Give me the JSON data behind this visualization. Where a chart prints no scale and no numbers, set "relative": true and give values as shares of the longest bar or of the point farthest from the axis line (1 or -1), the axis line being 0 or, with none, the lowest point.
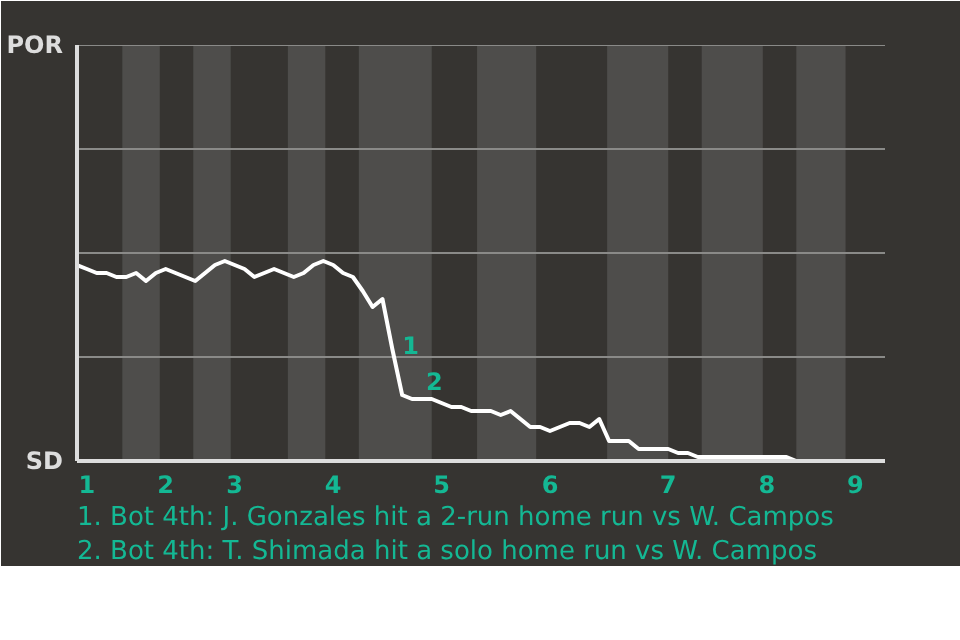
{
  "chart_data": {
    "type": "line",
    "relative": true,
    "categories": [
      null,
      "1",
      null,
      null,
      null,
      null,
      null,
      null,
      null,
      "2",
      null,
      null,
      null,
      null,
      null,
      null,
      "3",
      null,
      null,
      null,
      null,
      null,
      null,
      null,
      null,
      null,
      "4",
      null,
      null,
      null,
      null,
      null,
      null,
      null,
      null,
      null,
      null,
      "5",
      null,
      null,
      null,
      null,
      null,
      null,
      null,
      null,
      null,
      null,
      "6",
      null,
      null,
      null,
      null,
      null,
      null,
      null,
      null,
      null,
      null,
      null,
      "7",
      null,
      null,
      null,
      null,
      null,
      null,
      null,
      null,
      null,
      "8",
      null,
      null,
      null,
      null,
      null,
      null,
      null,
      null,
      "9",
      null,
      null
    ],
    "series": [
      {
        "color": "#ffffff",
        "values": [
          0.98,
          0.96,
          0.94,
          0.94,
          0.92,
          0.92,
          0.94,
          0.9,
          0.94,
          0.96,
          0.94,
          0.92,
          0.9,
          0.94,
          0.98,
          1,
          0.98,
          0.96,
          0.92,
          0.94,
          0.96,
          0.94,
          0.92,
          0.94,
          0.98,
          1,
          0.98,
          0.94,
          0.92,
          0.85,
          0.77,
          0.81,
          0.56,
          0.33,
          0.31,
          0.31,
          0.31,
          0.29,
          0.27,
          0.27,
          0.25,
          0.25,
          0.25,
          0.23,
          0.25,
          0.21,
          0.17,
          0.17,
          0.15,
          0.17,
          0.19,
          0.19,
          0.17,
          0.21,
          0.1,
          0.1,
          0.1,
          0.06,
          0.06,
          0.06,
          0.06,
          0.04,
          0.04,
          0.02,
          0.02,
          0.02,
          0.02,
          0.02,
          0.02,
          0.02,
          0.02,
          0.02,
          0.02,
          0,
          0,
          0,
          0,
          0,
          0,
          0,
          0,
          0
        ]
      }
    ],
    "line_style": "solid",
    "ref_lines": [
      {
        "axis": "y",
        "value": 0.52,
        "color": "#8a8a88"
      },
      {
        "axis": "y",
        "value": 1.04,
        "color": "#8a8a88"
      },
      {
        "axis": "y",
        "value": 1.56,
        "color": "#8a8a88"
      },
      {
        "axis": "y",
        "value": 2.08,
        "color": "#8a8a88"
      }
    ],
    "annotations": [
      "POR",
      "SD",
      "1",
      "2",
      "1. Bot 4th: J. Gonzales hit a 2-run home run vs W. Campos",
      "2. Bot 4th: T. Shimada hit a solo home run vs W. Campos"
    ]
  }
}
